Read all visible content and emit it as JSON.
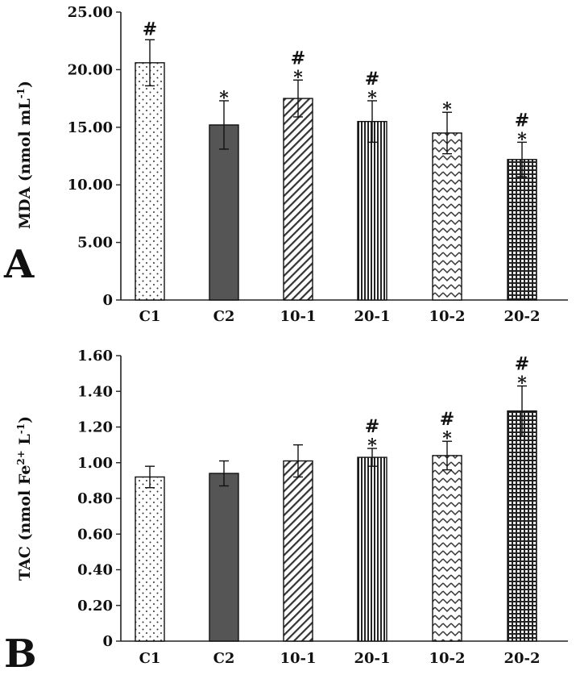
{
  "chart_data": [
    {
      "type": "bar",
      "panel": "A",
      "title": "",
      "xlabel": "",
      "ylabel": "MDA (nmol mL-1)",
      "ylabel_parts": {
        "main": "MDA (nmol mL",
        "sup": "-1",
        "close": ")"
      },
      "categories": [
        "C1",
        "C2",
        "10-1",
        "20-1",
        "10-2",
        "20-2"
      ],
      "values": [
        20.6,
        15.2,
        17.5,
        15.5,
        14.5,
        12.2
      ],
      "errors": [
        2.0,
        2.1,
        1.6,
        1.8,
        1.8,
        1.5
      ],
      "ylim": [
        0,
        25
      ],
      "yticks": [
        "0",
        "5.00",
        "10.00",
        "15.00",
        "20.00",
        "25.00"
      ],
      "ytick_values": [
        0,
        5,
        10,
        15,
        20,
        25
      ],
      "marks": [
        [
          "#"
        ],
        [
          "*"
        ],
        [
          "#",
          "*"
        ],
        [
          "#",
          "*"
        ],
        [
          "*"
        ],
        [
          "#",
          "*"
        ]
      ],
      "patterns": [
        "dots",
        "solid-gray",
        "diag",
        "vert",
        "zigzag",
        "grid"
      ],
      "grid": false
    },
    {
      "type": "bar",
      "panel": "B",
      "title": "",
      "xlabel": "",
      "ylabel": "TAC (nmol Fe2+ L-1)",
      "ylabel_parts": {
        "main": "TAC (nmol Fe",
        "sup1": "2+",
        "mid": " L",
        "sup2": "-1",
        "close": ")"
      },
      "categories": [
        "C1",
        "C2",
        "10-1",
        "20-1",
        "10-2",
        "20-2"
      ],
      "values": [
        0.92,
        0.94,
        1.01,
        1.03,
        1.04,
        1.29
      ],
      "errors": [
        0.06,
        0.07,
        0.09,
        0.05,
        0.08,
        0.14
      ],
      "ylim": [
        0,
        1.6
      ],
      "yticks": [
        "0",
        "0.20",
        "0.40",
        "0.60",
        "0.80",
        "1.00",
        "1.20",
        "1.40",
        "1.60"
      ],
      "ytick_values": [
        0,
        0.2,
        0.4,
        0.6,
        0.8,
        1.0,
        1.2,
        1.4,
        1.6
      ],
      "marks": [
        [],
        [],
        [],
        [
          "#",
          "*"
        ],
        [
          "#",
          "*"
        ],
        [
          "#",
          "*"
        ]
      ],
      "patterns": [
        "dots",
        "solid-gray",
        "diag",
        "vert",
        "zigzag",
        "grid"
      ],
      "grid": false
    }
  ]
}
